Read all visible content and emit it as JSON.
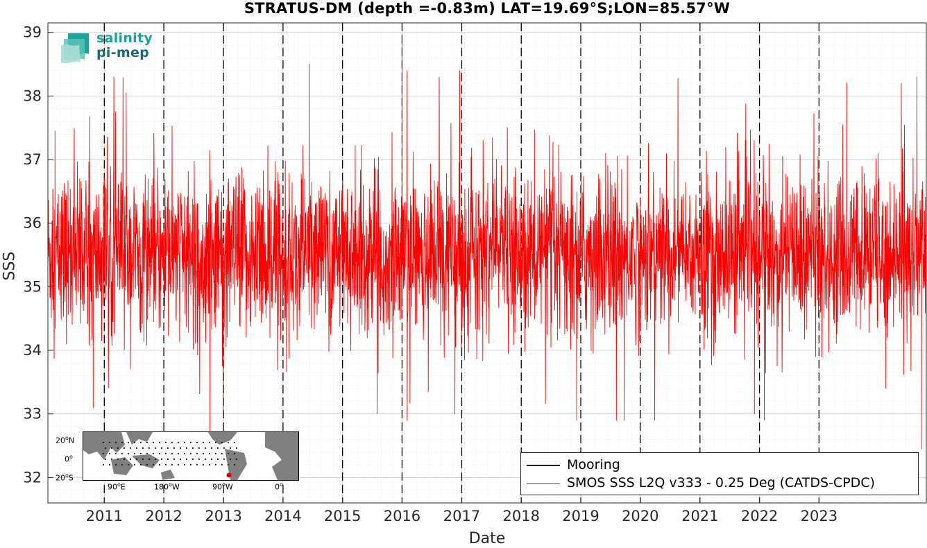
{
  "title": "STRATUS-DM (depth =-0.83m) LAT=19.69°S;LON=85.57°W",
  "logo": {
    "line1": "salinity",
    "line2": "pi-mep"
  },
  "inset_map": {
    "y_ticks": [
      "20oN",
      "0o",
      "20oS"
    ],
    "x_ticks": [
      "90oE",
      "180oW",
      "90oW",
      "0o"
    ]
  },
  "legend": {
    "items": [
      {
        "label": "Mooring",
        "color": "#000000"
      },
      {
        "label": "SMOS SSS L2Q v333 - 0.25 Deg (CATDS-CPDC)",
        "color": "#ff0000"
      }
    ],
    "placement": "bottom-right"
  },
  "chart_data": {
    "type": "line",
    "title": "STRATUS-DM (depth =-0.83m) LAT=19.69°S;LON=85.57°W",
    "xlabel": "Date",
    "ylabel": "SSS",
    "x_tick_labels": [
      "2011",
      "2012",
      "2013",
      "2014",
      "2015",
      "2016",
      "2017",
      "2018",
      "2019",
      "2020",
      "2021",
      "2022",
      "2023"
    ],
    "y_tick_labels": [
      "32",
      "33",
      "34",
      "35",
      "36",
      "37",
      "38",
      "39"
    ],
    "xlim": [
      "2010-01-20",
      "2024-10-20"
    ],
    "ylim": [
      31.6,
      39.15
    ],
    "grid": true,
    "vertical_dashed_lines": [
      "2011",
      "2012",
      "2013",
      "2014",
      "2015",
      "2016",
      "2017",
      "2018",
      "2019",
      "2020",
      "2021",
      "2022",
      "2023"
    ],
    "series": [
      {
        "name": "SMOS SSS L2Q v333 - 0.25 Deg (CATDS-CPDC)",
        "color": "#ff0000",
        "mean": 35.5,
        "noise_std": 0.62,
        "x_start": "2010-01-20",
        "x_end": "2024-10-20",
        "notable_points": [
          {
            "x": "2010-03-05",
            "y": 37.45
          },
          {
            "x": "2010-10-25",
            "y": 33.1
          },
          {
            "x": "2011-05-15",
            "y": 38.05
          },
          {
            "x": "2012-10-10",
            "y": 32.7
          },
          {
            "x": "2013-02-01",
            "y": 36.7
          },
          {
            "x": "2014-06-10",
            "y": 38.5
          },
          {
            "x": "2016-01-01",
            "y": 38.97
          },
          {
            "x": "2016-02-01",
            "y": 38.4
          },
          {
            "x": "2016-11-20",
            "y": 33.0
          },
          {
            "x": "2016-12-20",
            "y": 38.4
          },
          {
            "x": "2021-12-01",
            "y": 33.0
          },
          {
            "x": "2023-06-20",
            "y": 38.2
          },
          {
            "x": "2024-02-15",
            "y": 33.4
          },
          {
            "x": "2024-05-20",
            "y": 38.2
          },
          {
            "x": "2024-09-20",
            "y": 32.45
          }
        ]
      },
      {
        "name": "Mooring",
        "color": "#000000",
        "values": []
      }
    ]
  }
}
